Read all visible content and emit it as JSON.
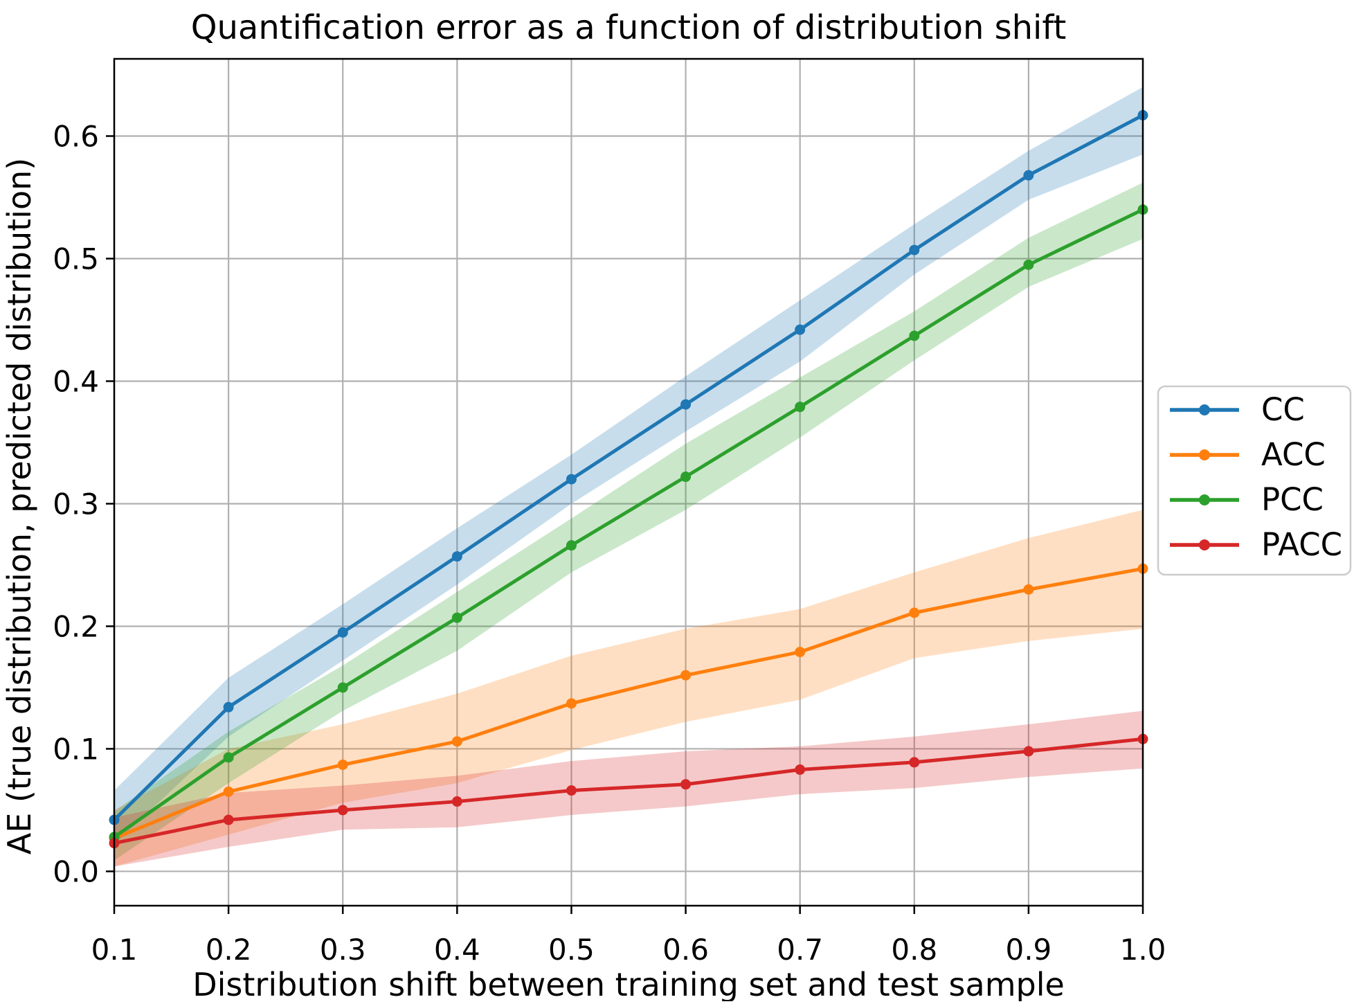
{
  "chart_data": {
    "type": "line",
    "title": "Quantification error as a function of distribution shift",
    "xlabel": "Distribution shift between training set and test sample",
    "ylabel": "AE (true distribution, predicted distribution)",
    "grid": true,
    "grid_color": "#b0b0b0",
    "background": "#ffffff",
    "legend_position": "center right, outside axes",
    "band_opacity": 0.25,
    "xlim": [
      0.1,
      1.0
    ],
    "ylim": [
      -0.028,
      0.663
    ],
    "x": [
      0.1,
      0.2,
      0.3,
      0.4,
      0.5,
      0.6,
      0.7,
      0.8,
      0.9,
      1.0
    ],
    "xticks": {
      "values": [
        0.1,
        0.2,
        0.3,
        0.4,
        0.5,
        0.6,
        0.7,
        0.8,
        0.9,
        1.0
      ],
      "labels": [
        "0.1",
        "0.2",
        "0.3",
        "0.4",
        "0.5",
        "0.6",
        "0.7",
        "0.8",
        "0.9",
        "1.0"
      ]
    },
    "yticks": {
      "values": [
        0.0,
        0.1,
        0.2,
        0.3,
        0.4,
        0.5,
        0.6
      ],
      "labels": [
        "0.0",
        "0.1",
        "0.2",
        "0.3",
        "0.4",
        "0.5",
        "0.6"
      ]
    },
    "series": [
      {
        "name": "CC",
        "color": "#1f77b4",
        "values": [
          0.042,
          0.134,
          0.195,
          0.257,
          0.32,
          0.381,
          0.442,
          0.507,
          0.568,
          0.617
        ],
        "band_low": [
          0.022,
          0.11,
          0.172,
          0.234,
          0.3,
          0.359,
          0.416,
          0.487,
          0.548,
          0.585
        ],
        "band_high": [
          0.066,
          0.158,
          0.218,
          0.28,
          0.34,
          0.404,
          0.466,
          0.528,
          0.588,
          0.64
        ]
      },
      {
        "name": "ACC",
        "color": "#ff7f0e",
        "values": [
          0.027,
          0.065,
          0.087,
          0.106,
          0.137,
          0.16,
          0.179,
          0.211,
          0.23,
          0.247
        ],
        "band_low": [
          0.004,
          0.03,
          0.056,
          0.072,
          0.099,
          0.122,
          0.14,
          0.174,
          0.188,
          0.198
        ],
        "band_high": [
          0.05,
          0.1,
          0.12,
          0.145,
          0.176,
          0.198,
          0.214,
          0.244,
          0.272,
          0.295
        ]
      },
      {
        "name": "PCC",
        "color": "#2ca02c",
        "values": [
          0.028,
          0.093,
          0.15,
          0.207,
          0.266,
          0.322,
          0.379,
          0.437,
          0.495,
          0.54
        ],
        "band_low": [
          0.009,
          0.072,
          0.131,
          0.18,
          0.244,
          0.295,
          0.354,
          0.417,
          0.477,
          0.516
        ],
        "band_high": [
          0.049,
          0.114,
          0.168,
          0.228,
          0.288,
          0.349,
          0.403,
          0.457,
          0.517,
          0.562
        ]
      },
      {
        "name": "PACC",
        "color": "#d62728",
        "values": [
          0.023,
          0.042,
          0.05,
          0.057,
          0.066,
          0.071,
          0.083,
          0.089,
          0.098,
          0.108
        ],
        "band_low": [
          0.004,
          0.02,
          0.034,
          0.036,
          0.046,
          0.053,
          0.063,
          0.068,
          0.077,
          0.084
        ],
        "band_high": [
          0.044,
          0.064,
          0.07,
          0.078,
          0.09,
          0.098,
          0.102,
          0.11,
          0.12,
          0.131
        ]
      }
    ],
    "legend": [
      "CC",
      "ACC",
      "PCC",
      "PACC"
    ]
  }
}
